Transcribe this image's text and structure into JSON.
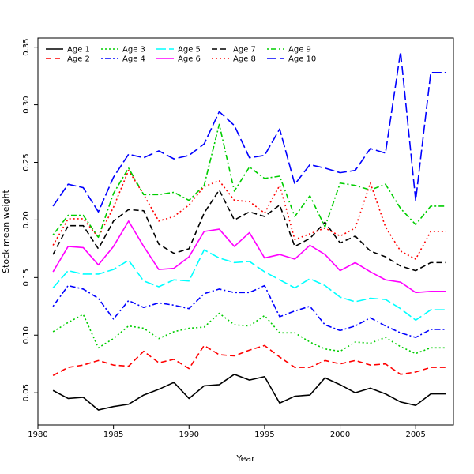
{
  "chart_data": {
    "type": "line",
    "xlabel": "Year",
    "ylabel": "Stock mean weight",
    "xlim": [
      1980,
      2007.5
    ],
    "ylim": [
      0.022,
      0.358
    ],
    "x_ticks": [
      1980,
      1985,
      1990,
      1995,
      2000,
      2005
    ],
    "y_ticks": [
      0.05,
      0.1,
      0.15,
      0.2,
      0.25,
      0.3,
      0.35
    ],
    "y_tick_labels": [
      "0.05",
      "0.10",
      "0.15",
      "0.20",
      "0.25",
      "0.30",
      "0.35"
    ],
    "legend_position": "top-left",
    "x": [
      1981,
      1982,
      1983,
      1984,
      1985,
      1986,
      1987,
      1988,
      1989,
      1990,
      1991,
      1992,
      1993,
      1994,
      1995,
      1996,
      1997,
      1998,
      1999,
      2000,
      2001,
      2002,
      2003,
      2004,
      2005,
      2006,
      2007
    ],
    "series": [
      {
        "name": "Age 1",
        "color": "#000000",
        "dash": "solid",
        "values": [
          0.052,
          0.045,
          0.046,
          0.035,
          0.038,
          0.04,
          0.048,
          0.053,
          0.059,
          0.045,
          0.056,
          0.057,
          0.066,
          0.061,
          0.064,
          0.041,
          0.047,
          0.048,
          0.063,
          0.057,
          0.05,
          0.054,
          0.049,
          0.042,
          0.039,
          0.049,
          0.049
        ]
      },
      {
        "name": "Age 2",
        "color": "#ff0000",
        "dash": "dash",
        "values": [
          0.065,
          0.072,
          0.074,
          0.078,
          0.074,
          0.073,
          0.086,
          0.076,
          0.079,
          0.071,
          0.091,
          0.083,
          0.082,
          0.087,
          0.091,
          0.081,
          0.072,
          0.072,
          0.078,
          0.075,
          0.078,
          0.074,
          0.075,
          0.066,
          0.068,
          0.072,
          0.072
        ]
      },
      {
        "name": "Age 3",
        "color": "#00cd00",
        "dash": "dot",
        "values": [
          0.103,
          0.111,
          0.118,
          0.089,
          0.097,
          0.108,
          0.106,
          0.097,
          0.103,
          0.106,
          0.107,
          0.119,
          0.109,
          0.108,
          0.117,
          0.102,
          0.102,
          0.094,
          0.088,
          0.086,
          0.094,
          0.093,
          0.098,
          0.09,
          0.084,
          0.089,
          0.089
        ]
      },
      {
        "name": "Age 4",
        "color": "#0000ff",
        "dash": "dashdot",
        "values": [
          0.125,
          0.143,
          0.14,
          0.132,
          0.114,
          0.13,
          0.124,
          0.128,
          0.126,
          0.123,
          0.136,
          0.14,
          0.137,
          0.137,
          0.143,
          0.116,
          0.121,
          0.125,
          0.109,
          0.104,
          0.108,
          0.115,
          0.108,
          0.102,
          0.098,
          0.105,
          0.105
        ]
      },
      {
        "name": "Age 5",
        "color": "#00ffff",
        "dash": "longdash",
        "values": [
          0.141,
          0.156,
          0.153,
          0.153,
          0.157,
          0.165,
          0.147,
          0.142,
          0.148,
          0.147,
          0.174,
          0.167,
          0.163,
          0.164,
          0.155,
          0.148,
          0.141,
          0.149,
          0.143,
          0.133,
          0.129,
          0.132,
          0.131,
          0.123,
          0.113,
          0.122,
          0.122
        ]
      },
      {
        "name": "Age 6",
        "color": "#ff00ff",
        "dash": "solid",
        "values": [
          0.155,
          0.177,
          0.176,
          0.161,
          0.177,
          0.199,
          0.177,
          0.157,
          0.158,
          0.168,
          0.19,
          0.192,
          0.177,
          0.189,
          0.167,
          0.17,
          0.166,
          0.178,
          0.17,
          0.156,
          0.163,
          0.155,
          0.148,
          0.146,
          0.137,
          0.138,
          0.138
        ]
      },
      {
        "name": "Age 7",
        "color": "#000000",
        "dash": "dash",
        "values": [
          0.17,
          0.195,
          0.195,
          0.175,
          0.199,
          0.209,
          0.208,
          0.179,
          0.171,
          0.175,
          0.206,
          0.226,
          0.2,
          0.207,
          0.203,
          0.213,
          0.177,
          0.184,
          0.198,
          0.18,
          0.186,
          0.173,
          0.168,
          0.16,
          0.156,
          0.163,
          0.163
        ]
      },
      {
        "name": "Age 8",
        "color": "#ff0000",
        "dash": "dot",
        "values": [
          0.178,
          0.201,
          0.201,
          0.185,
          0.211,
          0.243,
          0.222,
          0.199,
          0.203,
          0.213,
          0.229,
          0.234,
          0.217,
          0.216,
          0.206,
          0.23,
          0.183,
          0.188,
          0.193,
          0.186,
          0.193,
          0.232,
          0.194,
          0.173,
          0.166,
          0.19,
          0.19
        ]
      },
      {
        "name": "Age 9",
        "color": "#00cd00",
        "dash": "dashdot",
        "values": [
          0.187,
          0.204,
          0.204,
          0.185,
          0.223,
          0.245,
          0.222,
          0.222,
          0.224,
          0.217,
          0.23,
          0.283,
          0.225,
          0.246,
          0.236,
          0.238,
          0.203,
          0.221,
          0.194,
          0.232,
          0.23,
          0.226,
          0.231,
          0.21,
          0.196,
          0.212,
          0.212
        ]
      },
      {
        "name": "Age 10",
        "color": "#0000ff",
        "dash": "longdash",
        "values": [
          0.212,
          0.231,
          0.228,
          0.207,
          0.237,
          0.257,
          0.254,
          0.26,
          0.253,
          0.256,
          0.266,
          0.294,
          0.282,
          0.254,
          0.256,
          0.279,
          0.231,
          0.248,
          0.245,
          0.241,
          0.243,
          0.262,
          0.258,
          0.346,
          0.217,
          0.328,
          0.328
        ]
      }
    ]
  }
}
